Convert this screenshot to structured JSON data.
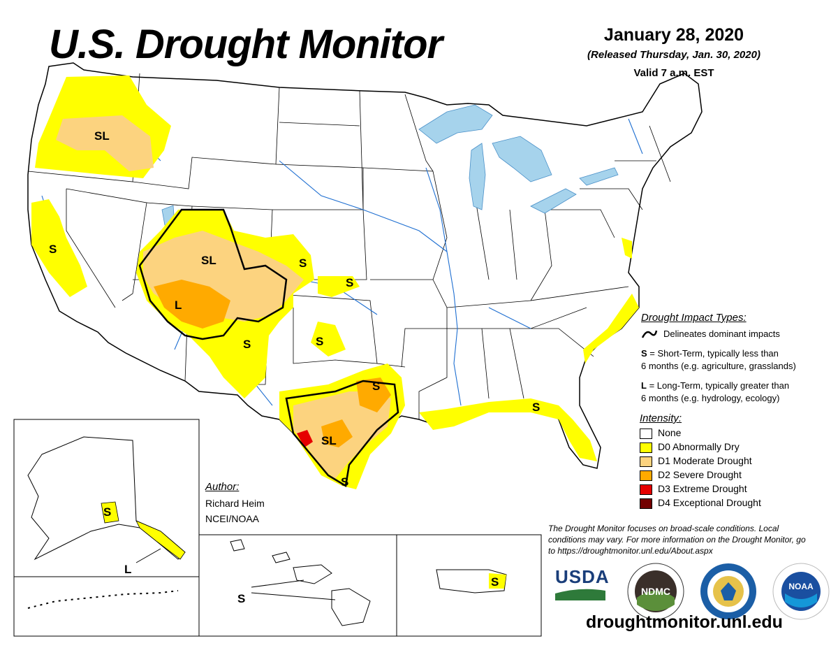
{
  "header": {
    "title": "U.S. Drought Monitor",
    "date": "January 28, 2020",
    "released": "(Released Thursday, Jan. 30, 2020)",
    "valid": "Valid 7 a.m. EST"
  },
  "map_labels": {
    "pnw": "SL",
    "california": "S",
    "four_corners_sl": "SL",
    "four_corners_l": "L",
    "colorado_e": "S",
    "kansas": "S",
    "new_mexico": "S",
    "oklahoma": "S",
    "texas_e": "S",
    "texas_sl": "SL",
    "texas_s_tip": "S",
    "florida": "S",
    "alaska_s": "S",
    "alaska_l": "L",
    "hawaii": "S",
    "puerto_rico": "S"
  },
  "impact_legend": {
    "heading": "Drought Impact Types:",
    "delineates": "Delineates dominant impacts",
    "s_key": "S",
    "s_text": "= Short-Term, typically less than",
    "s_text2": "6 months (e.g. agriculture, grasslands)",
    "l_key": "L",
    "l_text": "= Long-Term, typically greater than",
    "l_text2": "6 months (e.g. hydrology, ecology)"
  },
  "intensity_legend": {
    "heading": "Intensity:",
    "items": [
      {
        "label": "None",
        "color": "#ffffff"
      },
      {
        "label": "D0 Abnormally Dry",
        "color": "#ffff00"
      },
      {
        "label": "D1 Moderate Drought",
        "color": "#fcd37f"
      },
      {
        "label": "D2 Severe Drought",
        "color": "#ffaa00"
      },
      {
        "label": "D3 Extreme Drought",
        "color": "#e60000"
      },
      {
        "label": "D4 Exceptional Drought",
        "color": "#730000"
      }
    ]
  },
  "author": {
    "heading": "Author:",
    "name": "Richard Heim",
    "org": "NCEI/NOAA"
  },
  "disclaimer": "The Drought Monitor focuses on broad-scale conditions. Local conditions may vary. For more information on the Drought Monitor, go to https://droughtmonitor.unl.edu/About.aspx",
  "logos": {
    "usda": "USDA",
    "ndmc": "NDMC",
    "noaa": "NOAA"
  },
  "website": "droughtmonitor.unl.edu"
}
